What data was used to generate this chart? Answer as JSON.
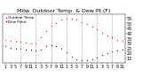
{
  "title": "Milw. Outdoor Temp. & Dew Pt.(F)",
  "legend_temp": "Outdoor Temp",
  "legend_dew": "Dew Point",
  "x_labels": [
    "1",
    "3",
    "5",
    "7",
    "9",
    "11",
    "1",
    "3",
    "5",
    "7",
    "9",
    "11",
    "1",
    "3",
    "5",
    "7",
    "9",
    "11",
    "1",
    "3",
    "5",
    "7",
    "9",
    "11"
  ],
  "temp_x": [
    0,
    1,
    2,
    3,
    4,
    5,
    6,
    7,
    8,
    9,
    10,
    11,
    12,
    13,
    14,
    15,
    16,
    17,
    18,
    19,
    20,
    21,
    22,
    23
  ],
  "temp_y": [
    34,
    33,
    32,
    32,
    31,
    30,
    30,
    36,
    43,
    48,
    51,
    54,
    55,
    55,
    54,
    52,
    50,
    47,
    44,
    41,
    38,
    36,
    34,
    33
  ],
  "dew_x": [
    0,
    1,
    2,
    3,
    4,
    5,
    6,
    7,
    8,
    9,
    10,
    11,
    12,
    13,
    14,
    15,
    16,
    17,
    18,
    19,
    20,
    21,
    22,
    23
  ],
  "dew_y": [
    27,
    26,
    25,
    25,
    24,
    24,
    23,
    24,
    27,
    28,
    27,
    25,
    21,
    17,
    14,
    13,
    13,
    14,
    16,
    18,
    20,
    22,
    23,
    24
  ],
  "temp_color": "#ff0000",
  "dew_color": "#0000dd",
  "grid_color": "#888888",
  "bg_color": "#ffffff",
  "ylim": [
    10,
    60
  ],
  "xlim": [
    -0.5,
    23.5
  ],
  "yticks": [
    15,
    20,
    25,
    30,
    35,
    40,
    45,
    50,
    55
  ],
  "vlines": [
    3,
    6,
    9,
    12,
    15,
    18,
    21
  ],
  "title_fontsize": 4.5,
  "tick_fontsize": 3.5,
  "marker_size": 1.8
}
